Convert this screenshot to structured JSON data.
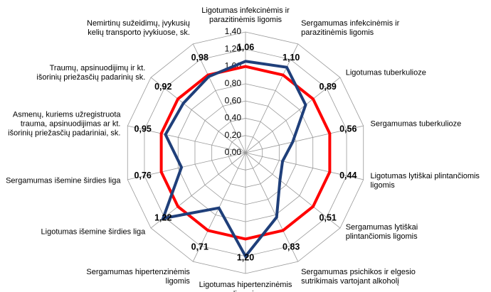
{
  "chart_data": {
    "type": "radar",
    "categories": [
      "Ligotumas infekcinėmis ir\nparazitinėmis ligomis",
      "Sergamumas infekcinėmis ir\nparazitinėmis ligomis",
      "Ligotumas tuberkulioze",
      "Sergamumas tuberkulioze",
      "Ligotumas lytiškai plintančiomis\nligomis",
      "Sergamumas lytiškai\nplintančiomis ligomis",
      "Sergamumas psichikos ir elgesio\nsutrikimais vartojant alkoholį",
      "Ligotumas hipertenzinėmis\nligomis",
      "Sergamumas hipertenzinėmis\nligomis",
      "Ligotumas išemine širdies liga",
      "Sergamumas išemine širdies liga",
      "Asmenų, kuriems užregistruota\ntrauma, apsinuodijimas ar kt.\nišorinių priežasčių padariniai, sk.",
      "Traumų, apsinuodijimų ir kt.\nišorinių priežasčių padarinių sk.",
      "Nemirtinų sužeidimų, įvykusių\nkelių transporto įvykiuose, sk."
    ],
    "series": [
      {
        "color": "#1f3f7a",
        "values": [
          1.06,
          1.1,
          0.89,
          0.56,
          0.44,
          0.51,
          0.83,
          1.2,
          0.71,
          1.22,
          0.76,
          0.95,
          0.92,
          0.98
        ],
        "value_labels": [
          "1,06",
          "1,10",
          "0,89",
          "0,56",
          "0,44",
          "0,51",
          "0,83",
          "1,20",
          "0,71",
          "1,22",
          "0,76",
          "0,95",
          "0,92",
          "0,98"
        ]
      },
      {
        "color": "#ff0000",
        "values": [
          1,
          1,
          1,
          1,
          1,
          1,
          1,
          1,
          1,
          1,
          1,
          1,
          1,
          1
        ]
      }
    ],
    "ylim": [
      0,
      1.4
    ],
    "yticks": [
      {
        "value": 0,
        "label": "0,00"
      },
      {
        "value": 0.2,
        "label": "0,20"
      },
      {
        "value": 0.4,
        "label": "0,40"
      },
      {
        "value": 0.6,
        "label": "0,60"
      },
      {
        "value": 0.8,
        "label": "0,80"
      },
      {
        "value": 1,
        "label": "1,00"
      },
      {
        "value": 1.2,
        "label": "1,20"
      },
      {
        "value": 1.4,
        "label": "1,40"
      }
    ],
    "grid": true
  }
}
